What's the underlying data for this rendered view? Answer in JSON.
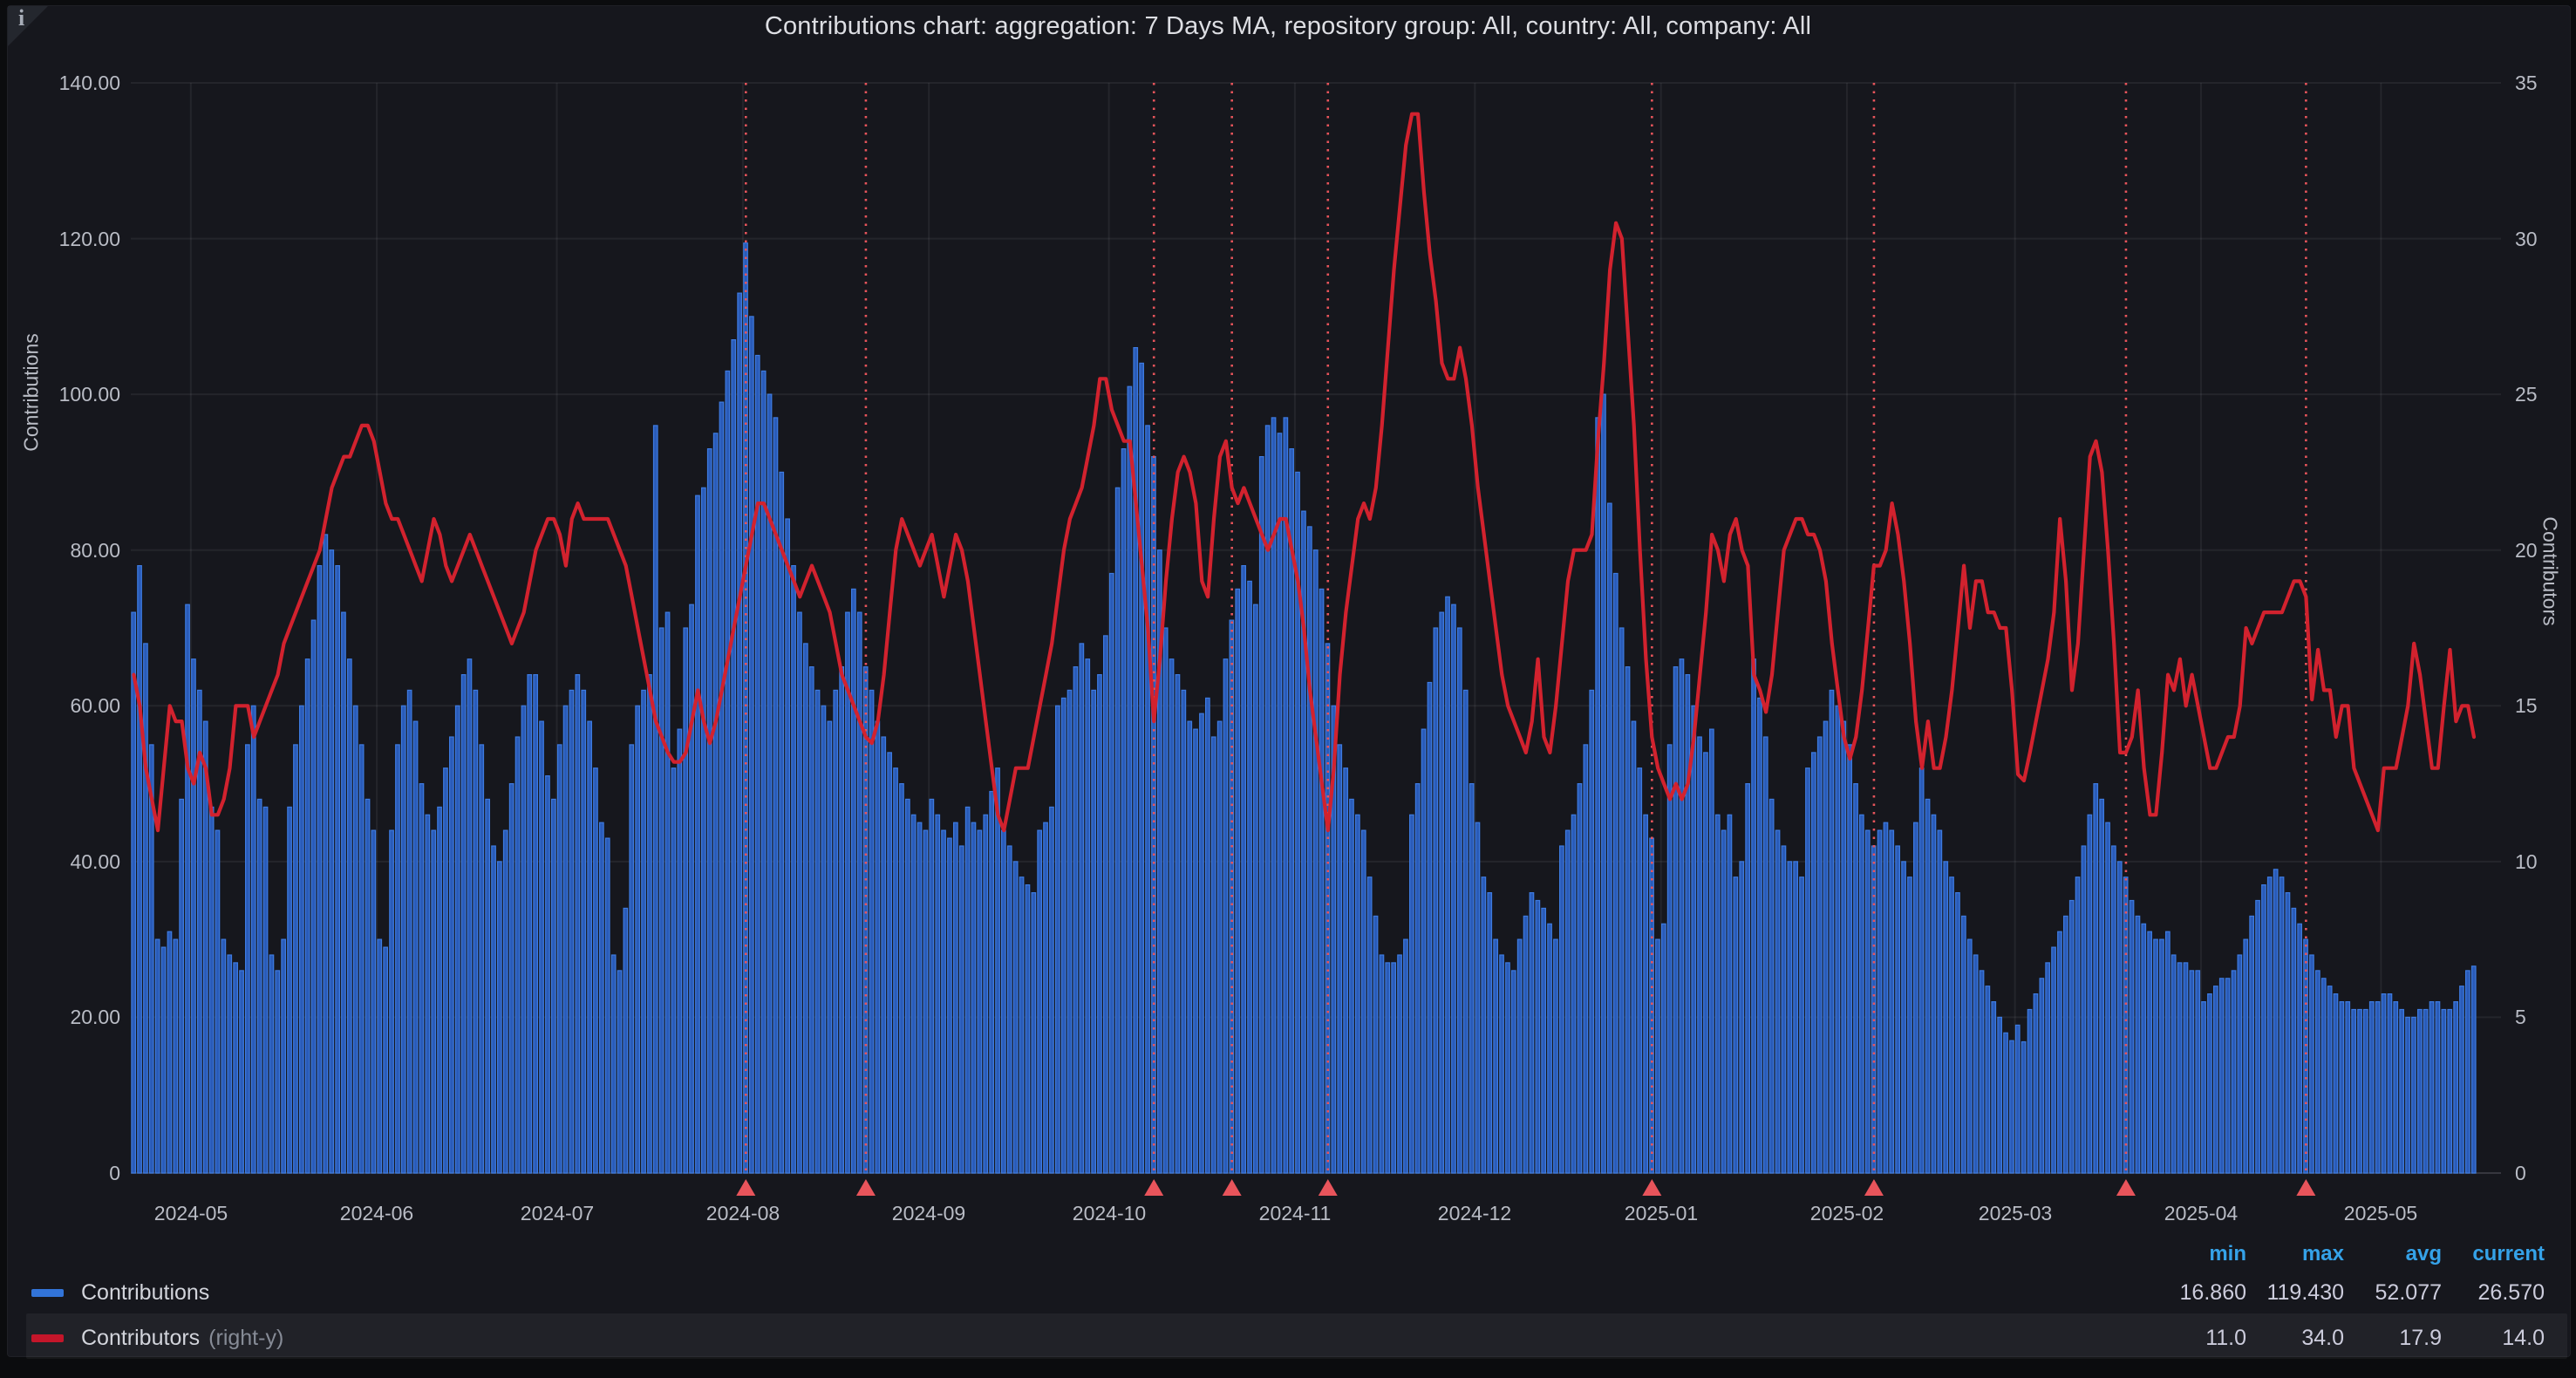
{
  "panel": {
    "title": "Contributions chart: aggregation: 7 Days MA, repository group: All, country: All, company: All",
    "info_icon": "i"
  },
  "y_left": {
    "label": "Contributions",
    "ticks": [
      "140.00",
      "120.00",
      "100.00",
      "80.00",
      "60.00",
      "40.00",
      "20.00",
      "0"
    ],
    "max": 140,
    "step": 20
  },
  "y_right": {
    "label": "Contributors",
    "ticks": [
      "35",
      "30",
      "25",
      "20",
      "15",
      "10",
      "5",
      "0"
    ],
    "max": 35,
    "step": 5
  },
  "x_axis": {
    "months": [
      {
        "label": "2024-05",
        "day_index": 10
      },
      {
        "label": "2024-06",
        "day_index": 41
      },
      {
        "label": "2024-07",
        "day_index": 71
      },
      {
        "label": "2024-08",
        "day_index": 102
      },
      {
        "label": "2024-09",
        "day_index": 133
      },
      {
        "label": "2024-10",
        "day_index": 163
      },
      {
        "label": "2024-11",
        "day_index": 194
      },
      {
        "label": "2024-12",
        "day_index": 224
      },
      {
        "label": "2025-01",
        "day_index": 255
      },
      {
        "label": "2025-02",
        "day_index": 286
      },
      {
        "label": "2025-03",
        "day_index": 314
      },
      {
        "label": "2025-04",
        "day_index": 345
      },
      {
        "label": "2025-05",
        "day_index": 375
      }
    ]
  },
  "legend": {
    "headers": [
      "min",
      "max",
      "avg",
      "current"
    ],
    "series": [
      {
        "label": "Contributions",
        "suffix": "",
        "color": "#3274D9",
        "stats": [
          "16.860",
          "119.430",
          "52.077",
          "26.570"
        ]
      },
      {
        "label": "Contributors",
        "suffix": "(right-y)",
        "color": "#C4162A",
        "stats": [
          "11.0",
          "34.0",
          "17.9",
          "14.0"
        ]
      }
    ]
  },
  "annotations": {
    "color": "#E8545B",
    "day_indices": [
      102,
      122,
      170,
      183,
      199,
      253,
      290,
      332,
      362
    ]
  },
  "colors": {
    "bar_fill": "#2A5BB8",
    "bar_stroke": "#3D7BE0",
    "line": "#D2222E",
    "grid": "rgba(204,204,220,0.08)",
    "axis_line": "rgba(204,204,220,0.18)",
    "legend_header": "#35a2e8"
  },
  "chart_data": {
    "type": "bar",
    "title": "Contributions chart: aggregation: 7 Days MA, repository group: All, country: All, company: All",
    "xlabel": "",
    "ylabel_left": "Contributions",
    "ylabel_right": "Contributors",
    "start_date": "2024-04-21",
    "end_date": "2025-05-16",
    "ylim_left": [
      0,
      140
    ],
    "ylim_right": [
      0,
      35
    ],
    "grid": true,
    "legend_position": "bottom-left",
    "annotation_dates": [
      "2024-08-01",
      "2024-08-21",
      "2024-10-08",
      "2024-10-21",
      "2024-11-06",
      "2024-12-30",
      "2025-02-05",
      "2025-03-19",
      "2025-04-18"
    ],
    "series": [
      {
        "name": "Contributions",
        "type": "bar",
        "axis": "left",
        "color": "#3274D9",
        "values": [
          72,
          78,
          68,
          55,
          30,
          29,
          31,
          30,
          48,
          73,
          66,
          62,
          58,
          47,
          44,
          30,
          28,
          27,
          26,
          55,
          60,
          48,
          47,
          28,
          26,
          30,
          47,
          55,
          60,
          66,
          71,
          78,
          82,
          80,
          78,
          72,
          66,
          60,
          55,
          48,
          44,
          30,
          29,
          44,
          55,
          60,
          62,
          58,
          50,
          46,
          44,
          47,
          52,
          56,
          60,
          64,
          66,
          62,
          55,
          48,
          42,
          40,
          44,
          50,
          56,
          60,
          64,
          64,
          58,
          51,
          48,
          55,
          60,
          62,
          64,
          62,
          58,
          52,
          45,
          43,
          28,
          26,
          34,
          55,
          60,
          62,
          64,
          96,
          70,
          72,
          52,
          57,
          70,
          73,
          87,
          88,
          93,
          95,
          99,
          103,
          107,
          113,
          119.43,
          110,
          105,
          103,
          100,
          97,
          90,
          84,
          78,
          72,
          68,
          65,
          62,
          60,
          58,
          62,
          65,
          72,
          75,
          72,
          65,
          62,
          58,
          56,
          54,
          52,
          50,
          48,
          46,
          45,
          44,
          48,
          46,
          44,
          43,
          45,
          42,
          47,
          45,
          44,
          46,
          49,
          52,
          44,
          42,
          40,
          38,
          37,
          36,
          44,
          45,
          47,
          60,
          61,
          62,
          65,
          68,
          66,
          62,
          64,
          69,
          77,
          88,
          93,
          101,
          106,
          104,
          96,
          92,
          80,
          70,
          66,
          64,
          62,
          58,
          57,
          59,
          61,
          56,
          58,
          66,
          71,
          75,
          78,
          76,
          73,
          92,
          96,
          97,
          95,
          97,
          93,
          90,
          85,
          83,
          80,
          75,
          68,
          60,
          55,
          52,
          48,
          46,
          44,
          38,
          33,
          28,
          27,
          27,
          28,
          30,
          46,
          50,
          57,
          63,
          70,
          72,
          74,
          73,
          70,
          62,
          50,
          45,
          38,
          36,
          30,
          28,
          27,
          26,
          30,
          33,
          36,
          35,
          34,
          32,
          30,
          42,
          44,
          46,
          50,
          55,
          62,
          97,
          100,
          86,
          77,
          70,
          65,
          58,
          52,
          46,
          43,
          30,
          32,
          55,
          65,
          66,
          64,
          60,
          56,
          54,
          57,
          46,
          44,
          46,
          38,
          40,
          50,
          66,
          61,
          56,
          48,
          44,
          42,
          40,
          40,
          38,
          52,
          54,
          56,
          58,
          62,
          60,
          58,
          55,
          50,
          46,
          44,
          42,
          44,
          45,
          44,
          42,
          40,
          38,
          45,
          52,
          48,
          46,
          44,
          40,
          38,
          36,
          33,
          30,
          28,
          26,
          24,
          22,
          20,
          18,
          17,
          19,
          16.86,
          21,
          23,
          25,
          27,
          29,
          31,
          33,
          35,
          38,
          42,
          46,
          50,
          48,
          45,
          42,
          40,
          38,
          35,
          33,
          32,
          31,
          30,
          30,
          31,
          28,
          27,
          27,
          26,
          26,
          22,
          23,
          24,
          25,
          25,
          26,
          28,
          30,
          33,
          35,
          37,
          38,
          39,
          38,
          36,
          34,
          32,
          30,
          28,
          26,
          25,
          24,
          23,
          22,
          22,
          21,
          21,
          21,
          22,
          22,
          23,
          23,
          22,
          21,
          20,
          20,
          21,
          21,
          22,
          22,
          21,
          21,
          22,
          24,
          26,
          26.57
        ]
      },
      {
        "name": "Contributors",
        "type": "line",
        "axis": "right",
        "color": "#D2222E",
        "values": [
          16,
          15,
          13,
          12,
          11,
          13,
          15,
          14.5,
          14.5,
          13,
          12.5,
          13.5,
          13,
          11.5,
          11.5,
          12,
          13,
          15,
          15,
          15,
          14,
          14.5,
          15,
          15.5,
          16,
          17,
          17.5,
          18,
          18.5,
          19,
          19.5,
          20,
          21,
          22,
          22.5,
          23,
          23,
          23.5,
          24,
          24,
          23.5,
          22.5,
          21.5,
          21,
          21,
          20.5,
          20,
          19.5,
          19,
          20,
          21,
          20.5,
          19.5,
          19,
          19.5,
          20,
          20.5,
          20,
          19.5,
          19,
          18.5,
          18,
          17.5,
          17,
          17.5,
          18,
          19,
          20,
          20.5,
          21,
          21,
          20.5,
          19.5,
          21,
          21.5,
          21,
          21,
          21,
          21,
          21,
          20.5,
          20,
          19.5,
          18.5,
          17.5,
          16.5,
          15.5,
          14.5,
          14,
          13.5,
          13.2,
          13.2,
          13.5,
          14.5,
          15.5,
          14.5,
          13.8,
          14.5,
          15.5,
          16.5,
          17.5,
          18.5,
          19.5,
          20.5,
          21.5,
          21.5,
          21,
          20.5,
          20,
          19.5,
          19,
          18.5,
          19,
          19.5,
          19,
          18.5,
          18,
          17,
          16,
          15.5,
          15,
          14.5,
          14,
          13.8,
          14.5,
          16,
          18,
          20,
          21,
          20.5,
          20,
          19.5,
          20,
          20.5,
          19.5,
          18.5,
          19.5,
          20.5,
          20,
          19,
          17.5,
          16,
          14.5,
          13,
          11.5,
          11,
          12,
          13,
          13,
          13,
          14,
          15,
          16,
          17,
          18.5,
          20,
          21,
          21.5,
          22,
          23,
          24,
          25.5,
          25.5,
          24.5,
          24,
          23.5,
          23.5,
          21.5,
          19.5,
          17.5,
          14.5,
          16.5,
          19,
          21,
          22.5,
          23,
          22.5,
          21.5,
          19,
          18.5,
          21,
          23,
          23.5,
          22,
          21.5,
          22,
          21.5,
          21,
          20.5,
          20,
          20.5,
          21,
          21,
          20,
          19,
          17.5,
          15.5,
          14,
          12.5,
          11,
          13,
          16,
          18,
          19.5,
          21,
          21.5,
          21,
          22,
          24,
          26.5,
          29,
          31,
          33,
          34,
          34,
          31.5,
          29.5,
          28,
          26,
          25.5,
          25.5,
          26.5,
          25.5,
          24,
          22,
          20.5,
          19,
          17.5,
          16,
          15,
          14.5,
          14,
          13.5,
          14.5,
          16.5,
          14,
          13.5,
          15,
          17,
          19,
          20,
          20,
          20,
          20.5,
          23.5,
          26,
          29,
          30.5,
          30,
          27,
          24,
          20,
          16.5,
          14,
          13,
          12.5,
          12,
          12.5,
          12,
          12.5,
          14,
          16,
          18,
          20.5,
          20,
          19,
          20.5,
          21,
          20,
          19.5,
          16,
          15.5,
          14.8,
          16,
          18,
          20,
          20.5,
          21,
          21,
          20.5,
          20.5,
          20,
          19,
          17,
          15.5,
          14,
          13.3,
          14,
          15.5,
          17.5,
          19.5,
          19.5,
          20,
          21.5,
          20.5,
          19,
          17,
          14.5,
          13,
          14.5,
          13,
          13,
          14,
          15.5,
          17.5,
          19.5,
          17.5,
          19,
          19,
          18,
          18,
          17.5,
          17.5,
          15.5,
          12.8,
          12.6,
          13.5,
          14.5,
          15.5,
          16.5,
          18,
          21,
          19,
          15.5,
          17,
          20,
          23,
          23.5,
          22.5,
          20,
          17,
          13.5,
          13.5,
          14,
          15.5,
          13,
          11.5,
          11.5,
          13.5,
          16,
          15.5,
          16.5,
          15,
          16,
          15,
          14,
          13,
          13,
          13.5,
          14,
          14,
          15,
          17.5,
          17,
          17.5,
          18,
          18,
          18,
          18,
          18.5,
          19,
          19,
          18.5,
          15.2,
          16.8,
          15.5,
          15.5,
          14,
          15,
          15,
          13,
          12.5,
          12,
          11.5,
          11,
          13,
          13,
          13,
          14,
          15,
          17,
          16,
          14.5,
          13,
          13,
          15,
          16.8,
          14.5,
          15,
          15,
          14
        ]
      }
    ]
  }
}
